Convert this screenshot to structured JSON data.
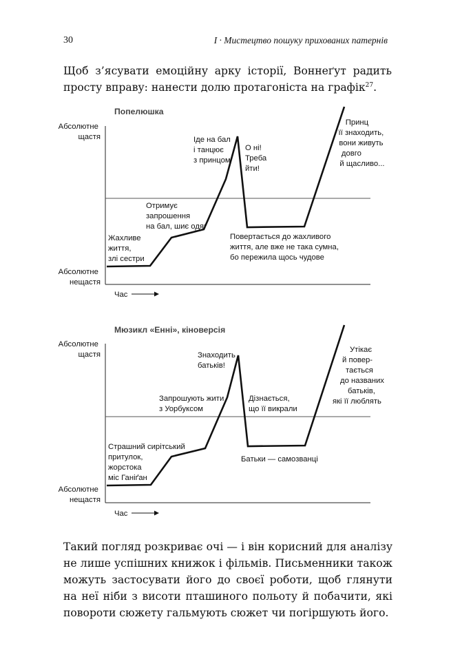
{
  "header": {
    "page_number": "30",
    "running_head": "I · Мистецтво пошуку прихованих патернів"
  },
  "intro": {
    "text": "Щоб з’ясувати емоційну арку історії, Воннеґут радить просту вправу: нанести долю протагоніста на графік",
    "footnote": "27",
    "end": "."
  },
  "charts": [
    {
      "title": "Попелюшка",
      "y_top": [
        "Абсолютне",
        "щастя"
      ],
      "y_bottom": [
        "Абсолютне",
        "нещастя"
      ],
      "x_label": "Час",
      "annotations": [
        {
          "lines": [
            "Жахливе",
            "життя,",
            "злі сестри"
          ]
        },
        {
          "lines": [
            "Отримує",
            "запрошення",
            "на бал, шиє одяг"
          ]
        },
        {
          "lines": [
            "Іде на бал",
            "і танцює",
            "з принцом"
          ]
        },
        {
          "lines": [
            "О ні!",
            "Треба",
            "йти!"
          ]
        },
        {
          "lines": [
            "Повертається до жахливого",
            "життя, але вже не така сумна,",
            "бо пережила щось чудове"
          ]
        },
        {
          "lines": [
            "Принц",
            "її знаходить,",
            "вони живуть",
            "довго",
            "й щасливо..."
          ]
        }
      ]
    },
    {
      "title": "Мюзикл «Енні», кіноверсія",
      "y_top": [
        "Абсолютне",
        "щастя"
      ],
      "y_bottom": [
        "Абсолютне",
        "нещастя"
      ],
      "x_label": "Час",
      "annotations": [
        {
          "lines": [
            "Страшний сирітський",
            "притулок,",
            "жорстока",
            "міс Ганіґан"
          ]
        },
        {
          "lines": [
            "Запрошують жити",
            "з Уорбуксом"
          ]
        },
        {
          "lines": [
            "Знаходить",
            "батьків!"
          ]
        },
        {
          "lines": [
            "Дізнається,",
            "що її викрали"
          ]
        },
        {
          "lines": [
            "Батьки — самозванці"
          ]
        },
        {
          "lines": [
            "Утікає",
            "й повер-",
            "тається",
            "до названих",
            "батьків,",
            "які її люблять"
          ]
        }
      ]
    }
  ],
  "outro": {
    "text": "Такий погляд розкриває очі — і він корисний для аналізу не лише успішних книжок і фільмів. Письменники також можуть застосувати його до своєї роботи, щоб глянути на неї ніби з висоти пташиного польоту й побачити, які повороти сюжету гальмують сюжет чи погіршують його."
  }
}
